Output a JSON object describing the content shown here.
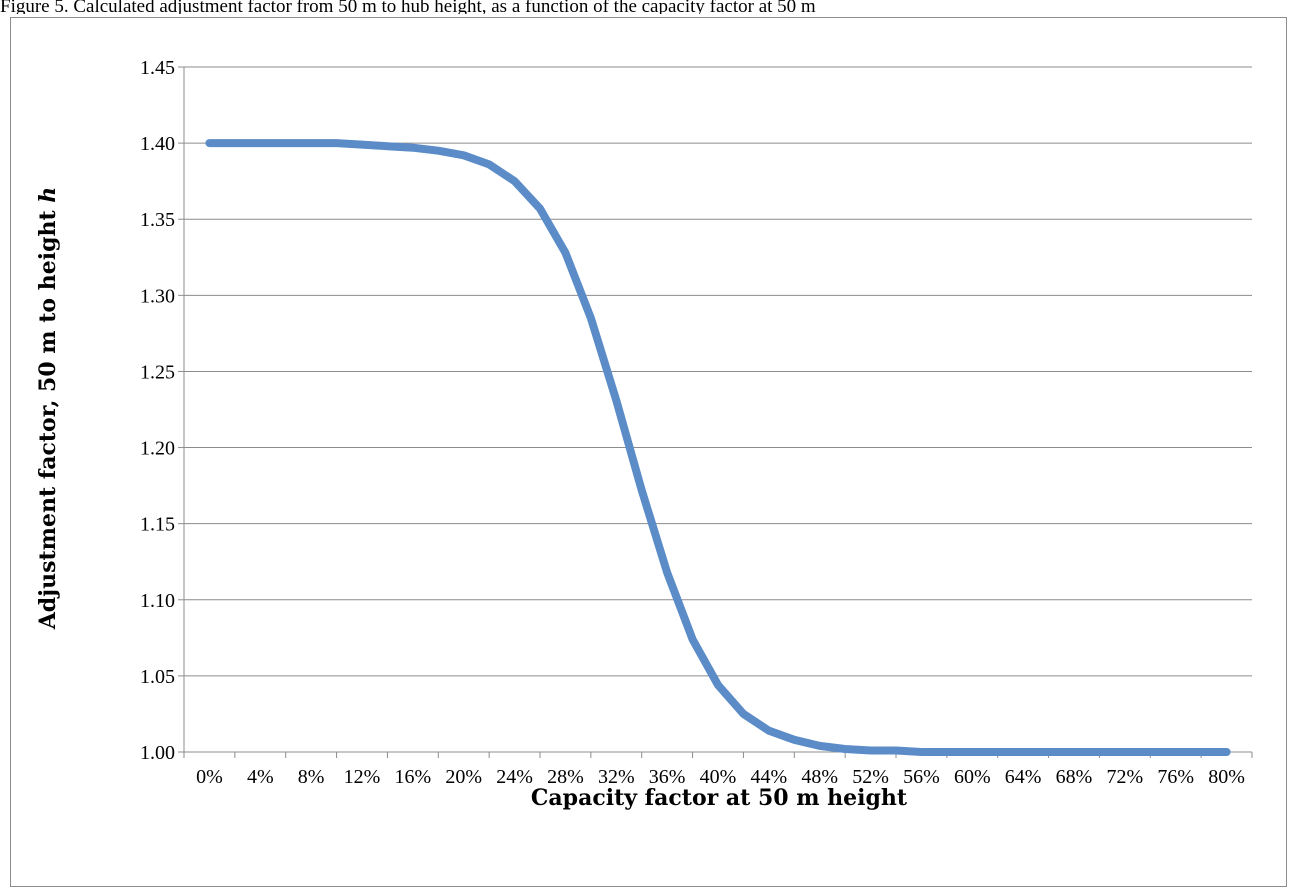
{
  "caption": "Figure 5. Calculated adjustment factor from 50 m to hub height, as a function of the capacity factor at 50 m",
  "chart_data": {
    "type": "line",
    "title": "",
    "xlabel": "Capacity factor at 50 m height",
    "ylabel_main": "Adjustment factor, 50 m to height ",
    "ylabel_italic": "h",
    "ylim": [
      1.0,
      1.45
    ],
    "y_ticks": [
      "1.00",
      "1.05",
      "1.10",
      "1.15",
      "1.20",
      "1.25",
      "1.30",
      "1.35",
      "1.40",
      "1.45"
    ],
    "y_tick_values": [
      1.0,
      1.05,
      1.1,
      1.15,
      1.2,
      1.25,
      1.3,
      1.35,
      1.4,
      1.45
    ],
    "x_ticks": [
      "0%",
      "4%",
      "8%",
      "12%",
      "16%",
      "20%",
      "24%",
      "28%",
      "32%",
      "36%",
      "40%",
      "44%",
      "48%",
      "52%",
      "56%",
      "60%",
      "64%",
      "68%",
      "72%",
      "76%",
      "80%"
    ],
    "grid": true,
    "series_color": "#5b8cc8",
    "series": [
      {
        "x": [
          0,
          2,
          4,
          6,
          8,
          10,
          12,
          14,
          16,
          18,
          20,
          22,
          24,
          26,
          28,
          30,
          32,
          34,
          36,
          38,
          40,
          42,
          44,
          46,
          48,
          50,
          52,
          54,
          56,
          58,
          60,
          62,
          64,
          66,
          68,
          70,
          72,
          74,
          76,
          78,
          80
        ],
        "values": [
          1.4,
          1.4,
          1.4,
          1.4,
          1.4,
          1.4,
          1.399,
          1.398,
          1.397,
          1.395,
          1.392,
          1.386,
          1.375,
          1.357,
          1.328,
          1.285,
          1.231,
          1.172,
          1.118,
          1.074,
          1.044,
          1.025,
          1.014,
          1.008,
          1.004,
          1.002,
          1.001,
          1.001,
          1.0,
          1.0,
          1.0,
          1.0,
          1.0,
          1.0,
          1.0,
          1.0,
          1.0,
          1.0,
          1.0,
          1.0,
          1.0
        ]
      }
    ]
  }
}
